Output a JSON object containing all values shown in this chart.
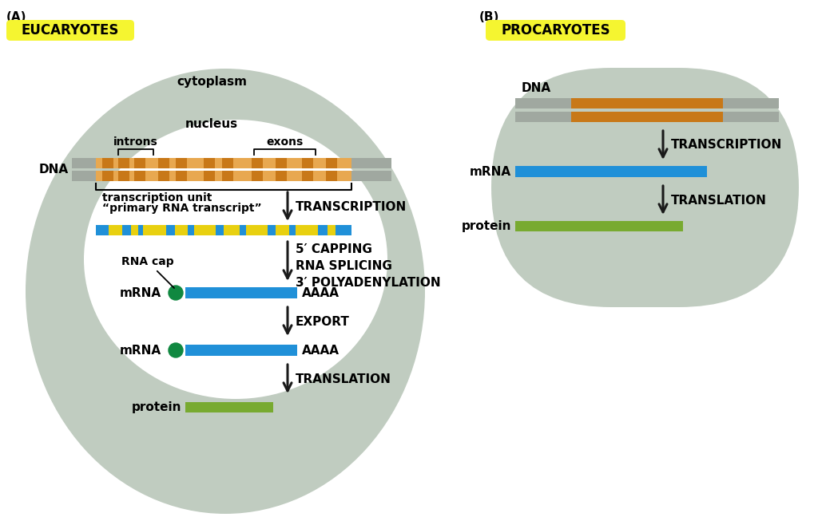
{
  "bg_color": "#ffffff",
  "cell_color": "#c0ccc0",
  "nucleus_color": "#ffffff",
  "label_A": "(A)",
  "label_B": "(B)",
  "title_eucaryotes": "EUCARYOTES",
  "title_procaryotes": "PROCARYOTES",
  "title_bg": "#f5f530",
  "cytoplasm_label": "cytoplasm",
  "nucleus_label": "nucleus",
  "dna_label": "DNA",
  "introns_label": "introns",
  "exons_label": "exons",
  "transcription_unit_label1": "transcription unit",
  "transcription_unit_label2": "“primary RNA transcript”",
  "transcription_label": "TRANSCRIPTION",
  "capping_label": "5′ CAPPING\nRNA SPLICING\n3′ POLYADENYLATION",
  "rna_cap_label": "RNA cap",
  "mrna_label": "mRNA",
  "aaaa_label": "AAAA",
  "export_label": "EXPORT",
  "translation_label": "TRANSLATION",
  "protein_label": "protein",
  "gray_color": "#a0a8a0",
  "orange_color": "#c87818",
  "light_orange_color": "#e8a850",
  "blue_color": "#2090d8",
  "yellow_color": "#e8d010",
  "green_color": "#78aa30",
  "cap_color": "#108840",
  "arrow_color": "#1a1a1a"
}
